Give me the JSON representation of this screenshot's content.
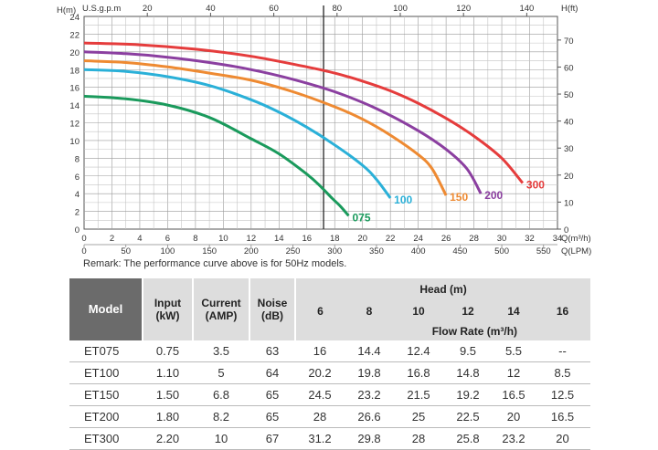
{
  "chart_data": {
    "type": "line",
    "xlabel_left": "H(m)",
    "xlabel_right": "H(ft)",
    "top_axis_label": "U.S.g.p.m",
    "bottom_axis_label_1": "Q(m³/h)",
    "bottom_axis_label_2": "Q(LPM)",
    "y_range": [
      0,
      24
    ],
    "x_range": [
      0,
      34
    ],
    "y_ticks": [
      "0",
      "2",
      "4",
      "6",
      "8",
      "10",
      "12",
      "14",
      "16",
      "18",
      "20",
      "22",
      "24"
    ],
    "y_right_ticks": [
      "0",
      "10",
      "20",
      "30",
      "40",
      "50",
      "60",
      "70"
    ],
    "x_ticks_m3h": [
      "0",
      "2",
      "4",
      "6",
      "8",
      "10",
      "12",
      "14",
      "16",
      "18",
      "20",
      "22",
      "24",
      "26",
      "28",
      "30",
      "32",
      "34"
    ],
    "x_ticks_lpm": [
      "0",
      "50",
      "100",
      "150",
      "200",
      "250",
      "300",
      "350",
      "400",
      "450",
      "500",
      "550"
    ],
    "x_ticks_gpm": [
      "20",
      "40",
      "60",
      "80",
      "100",
      "120",
      "140"
    ],
    "grid": true,
    "vertical_marker_x": 17.2,
    "series": [
      {
        "name": "075",
        "color": "#1a9a5c",
        "x": [
          0,
          3,
          6,
          9,
          12,
          14,
          16,
          17,
          17.8,
          18.4,
          19
        ],
        "y": [
          15,
          14.7,
          14,
          12.6,
          10.2,
          8.5,
          6.2,
          4.8,
          3.5,
          2.6,
          1.5
        ]
      },
      {
        "name": "100",
        "color": "#2ab0d8",
        "x": [
          0,
          3,
          6,
          9,
          12,
          14,
          16,
          18,
          20,
          21,
          22
        ],
        "y": [
          18,
          17.8,
          17.2,
          16.2,
          14.6,
          13.2,
          11.5,
          9.5,
          7.2,
          5.6,
          3.5
        ]
      },
      {
        "name": "150",
        "color": "#ee8a32",
        "x": [
          0,
          3,
          6,
          9,
          12,
          15,
          18,
          20,
          22,
          24,
          25,
          26
        ],
        "y": [
          19,
          18.8,
          18.3,
          17.6,
          16.8,
          15.5,
          13.8,
          12.4,
          10.6,
          8.4,
          6.8,
          3.8
        ]
      },
      {
        "name": "200",
        "color": "#8b3fa0",
        "x": [
          0,
          3,
          6,
          9,
          12,
          15,
          18,
          21,
          24,
          26,
          27.5,
          28.5
        ],
        "y": [
          20,
          19.8,
          19.4,
          18.8,
          18,
          16.9,
          15.5,
          13.6,
          11.1,
          9,
          6.8,
          4
        ]
      },
      {
        "name": "300",
        "color": "#e53c3c",
        "x": [
          0,
          4,
          8,
          12,
          16,
          18,
          20,
          22,
          24,
          26,
          28,
          30,
          31.5
        ],
        "y": [
          21,
          20.8,
          20.3,
          19.5,
          18.3,
          17.6,
          16.7,
          15.6,
          14.2,
          12.5,
          10.5,
          8,
          5.2
        ]
      }
    ]
  },
  "remark": "Remark: The performance curve above is for 50Hz models.",
  "table": {
    "headers": {
      "model": "Model",
      "input": "Input (kW)",
      "current": "Current (AMP)",
      "noise": "Noise (dB)",
      "head": "Head (m)",
      "flow_rate": "Flow Rate (m³/h)",
      "heads": [
        "6",
        "8",
        "10",
        "12",
        "14",
        "16"
      ]
    },
    "rows": [
      {
        "model": "ET075",
        "input": "0.75",
        "current": "3.5",
        "noise": "63",
        "flows": [
          "16",
          "14.4",
          "12.4",
          "9.5",
          "5.5",
          "--"
        ]
      },
      {
        "model": "ET100",
        "input": "1.10",
        "current": "5",
        "noise": "64",
        "flows": [
          "20.2",
          "19.8",
          "16.8",
          "14.8",
          "12",
          "8.5"
        ]
      },
      {
        "model": "ET150",
        "input": "1.50",
        "current": "6.8",
        "noise": "65",
        "flows": [
          "24.5",
          "23.2",
          "21.5",
          "19.2",
          "16.5",
          "12.5"
        ]
      },
      {
        "model": "ET200",
        "input": "1.80",
        "current": "8.2",
        "noise": "65",
        "flows": [
          "28",
          "26.6",
          "25",
          "22.5",
          "20",
          "16.5"
        ]
      },
      {
        "model": "ET300",
        "input": "2.20",
        "current": "10",
        "noise": "67",
        "flows": [
          "31.2",
          "29.8",
          "28",
          "25.8",
          "23.2",
          "20"
        ]
      }
    ]
  }
}
